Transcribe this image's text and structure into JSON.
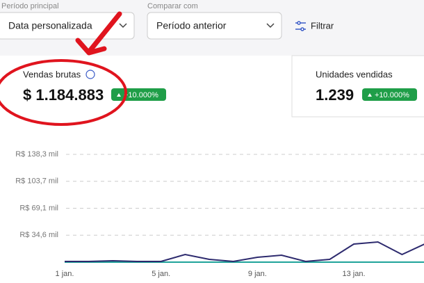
{
  "filters": {
    "main_label": "Período principal",
    "main_value": "Data personalizada",
    "compare_label": "Comparar com",
    "compare_value": "Período anterior",
    "filter_button": "Filtrar"
  },
  "cards": [
    {
      "title": "Vendas brutas",
      "value": "$ 1.184.883",
      "change": "+10.000%"
    },
    {
      "title": "Unidades vendidas",
      "value": "1.239",
      "change": "+10.000%"
    }
  ],
  "chart_data": {
    "type": "line",
    "categories": [
      "1 jan.",
      null,
      null,
      null,
      "5 jan.",
      null,
      null,
      null,
      "9 jan.",
      null,
      null,
      null,
      "13 jan.",
      null,
      null,
      null
    ],
    "series": [
      {
        "color": "#2d2a6e",
        "values": [
          900,
          900,
          1800,
          900,
          900,
          9800,
          3600,
          900,
          6200,
          8900,
          900,
          3600,
          23200,
          25900,
          9800,
          24100
        ]
      },
      {
        "color": "#1fa39a",
        "values": [
          0,
          0,
          0,
          0,
          0,
          0,
          0,
          0,
          0,
          0,
          0,
          0,
          0,
          0,
          0,
          0
        ]
      }
    ],
    "ylim": [
      0,
      138300
    ],
    "yticks": [
      {
        "value": 34600,
        "label": "R$ 34,6 mil"
      },
      {
        "value": 69100,
        "label": "R$ 69,1 mil"
      },
      {
        "value": 103700,
        "label": "R$ 103,7 mil"
      },
      {
        "value": 138300,
        "label": "R$ 138,3 mil"
      }
    ],
    "grid": true
  }
}
